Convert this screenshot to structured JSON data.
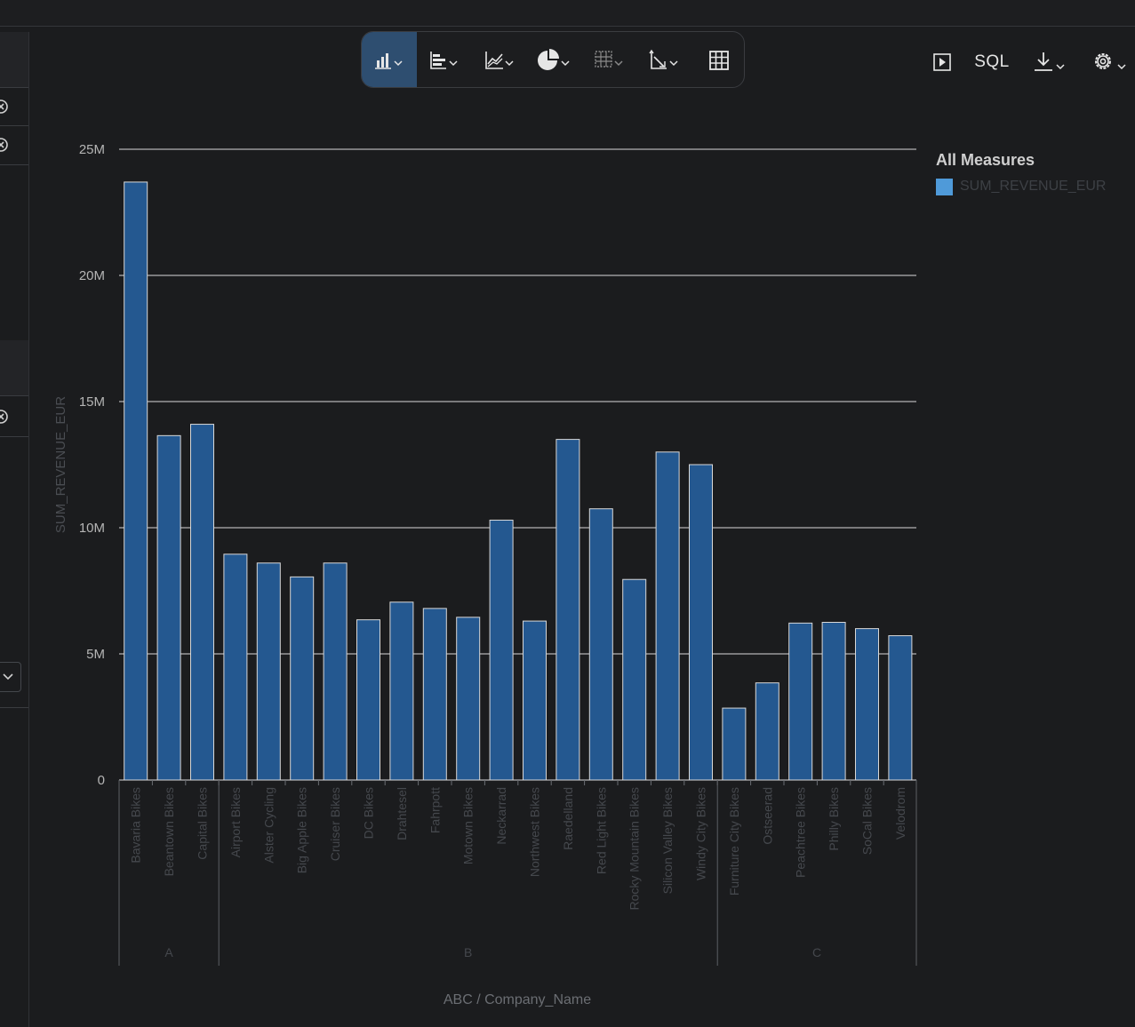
{
  "toolbar": {
    "buttons": [
      {
        "icon": "bar-chart-icon",
        "active": true
      },
      {
        "icon": "horizontal-bar-chart-icon",
        "active": false
      },
      {
        "icon": "line-chart-icon",
        "active": false
      },
      {
        "icon": "pie-chart-icon",
        "active": false
      },
      {
        "icon": "heatmap-icon",
        "active": false
      },
      {
        "icon": "scatter-chart-icon",
        "active": false
      },
      {
        "icon": "table-grid-icon",
        "active": false
      }
    ]
  },
  "right_tools": {
    "run_icon": "play-icon",
    "sql_label": "SQL",
    "download_icon": "download-icon",
    "settings_icon": "gear-icon"
  },
  "legend": {
    "title": "All Measures",
    "series_label": "SUM_REVENUE_EUR",
    "swatch_color": "#4f9ad9"
  },
  "colors": {
    "bar_fill": "#245890",
    "bar_stroke": "#d8d8d8",
    "active_button": "#2e4e70",
    "background": "#1b1c1e"
  },
  "chart_data": {
    "type": "bar",
    "ylabel": "SUM_REVENUE_EUR",
    "xlabel": "ABC / Company_Name",
    "ylim": [
      0,
      25000000
    ],
    "yticks": [
      {
        "value": 0,
        "label": "0"
      },
      {
        "value": 5000000,
        "label": "5M"
      },
      {
        "value": 10000000,
        "label": "10M"
      },
      {
        "value": 15000000,
        "label": "15M"
      },
      {
        "value": 20000000,
        "label": "20M"
      },
      {
        "value": 25000000,
        "label": "25M"
      }
    ],
    "grid": true,
    "groups": [
      {
        "label": "A",
        "categories": [
          "Bavaria Bikes",
          "Beantown Bikes",
          "Capital Bikes"
        ]
      },
      {
        "label": "B",
        "categories": [
          "Airport Bikes",
          "Alster Cycling",
          "Big Apple Bikes",
          "Cruiser Bikes",
          "DC Bikes",
          "Drahtesel",
          "Fahrpott",
          "Motown Bikes",
          "Neckarrad",
          "Northwest Bikes",
          "Raedelland",
          "Red Light Bikes",
          "Rocky Mountain Bikes",
          "Silicon Valley Bikes",
          "Windy City Bikes"
        ]
      },
      {
        "label": "C",
        "categories": [
          "Furniture City Bikes",
          "Ostseerad",
          "Peachtree Bikes",
          "Philly Bikes",
          "SoCal Bikes",
          "Velodrom"
        ]
      }
    ],
    "series": [
      {
        "name": "SUM_REVENUE_EUR",
        "values": [
          23700000,
          13650000,
          14100000,
          8950000,
          8600000,
          8050000,
          8600000,
          6350000,
          7050000,
          6800000,
          6450000,
          10300000,
          6300000,
          13500000,
          10750000,
          7950000,
          13000000,
          12500000,
          2850000,
          3850000,
          6220000,
          6250000,
          6000000,
          5720000
        ]
      }
    ]
  }
}
